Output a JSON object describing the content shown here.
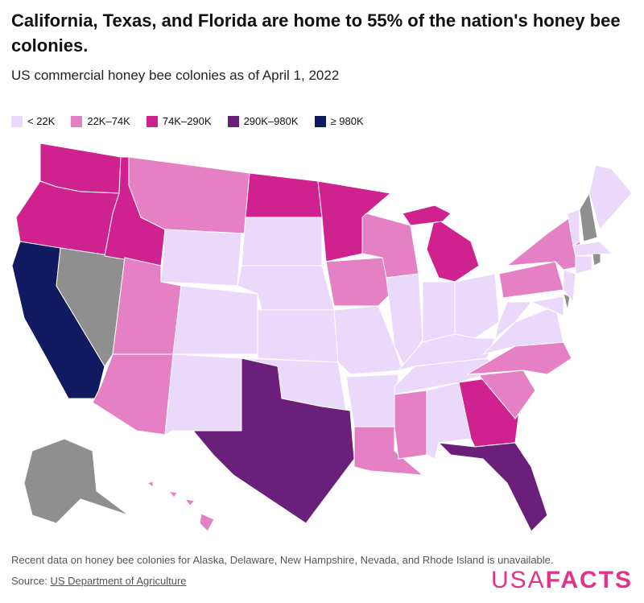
{
  "header": {
    "title": "California, Texas, and Florida are home to 55% of the nation's honey bee colonies.",
    "subtitle": "US commercial honey bee colonies as of April 1, 2022"
  },
  "legend": [
    {
      "label": "< 22K",
      "color": "#ead9fb"
    },
    {
      "label": "22K–74K",
      "color": "#e680c4"
    },
    {
      "label": "74K–290K",
      "color": "#d0228f"
    },
    {
      "label": "290K–980K",
      "color": "#6a1f7a"
    },
    {
      "label": "≥ 980K",
      "color": "#101a60"
    }
  ],
  "footer": {
    "note": "Recent data on honey bee colonies for Alaska, Delaware, New Hampshire, Nevada, and Rhode Island is unavailable.",
    "source_prefix": "Source:",
    "source_link": "US Department of Agriculture"
  },
  "logo": {
    "light": "USA",
    "bold": "FACTS"
  }
}
